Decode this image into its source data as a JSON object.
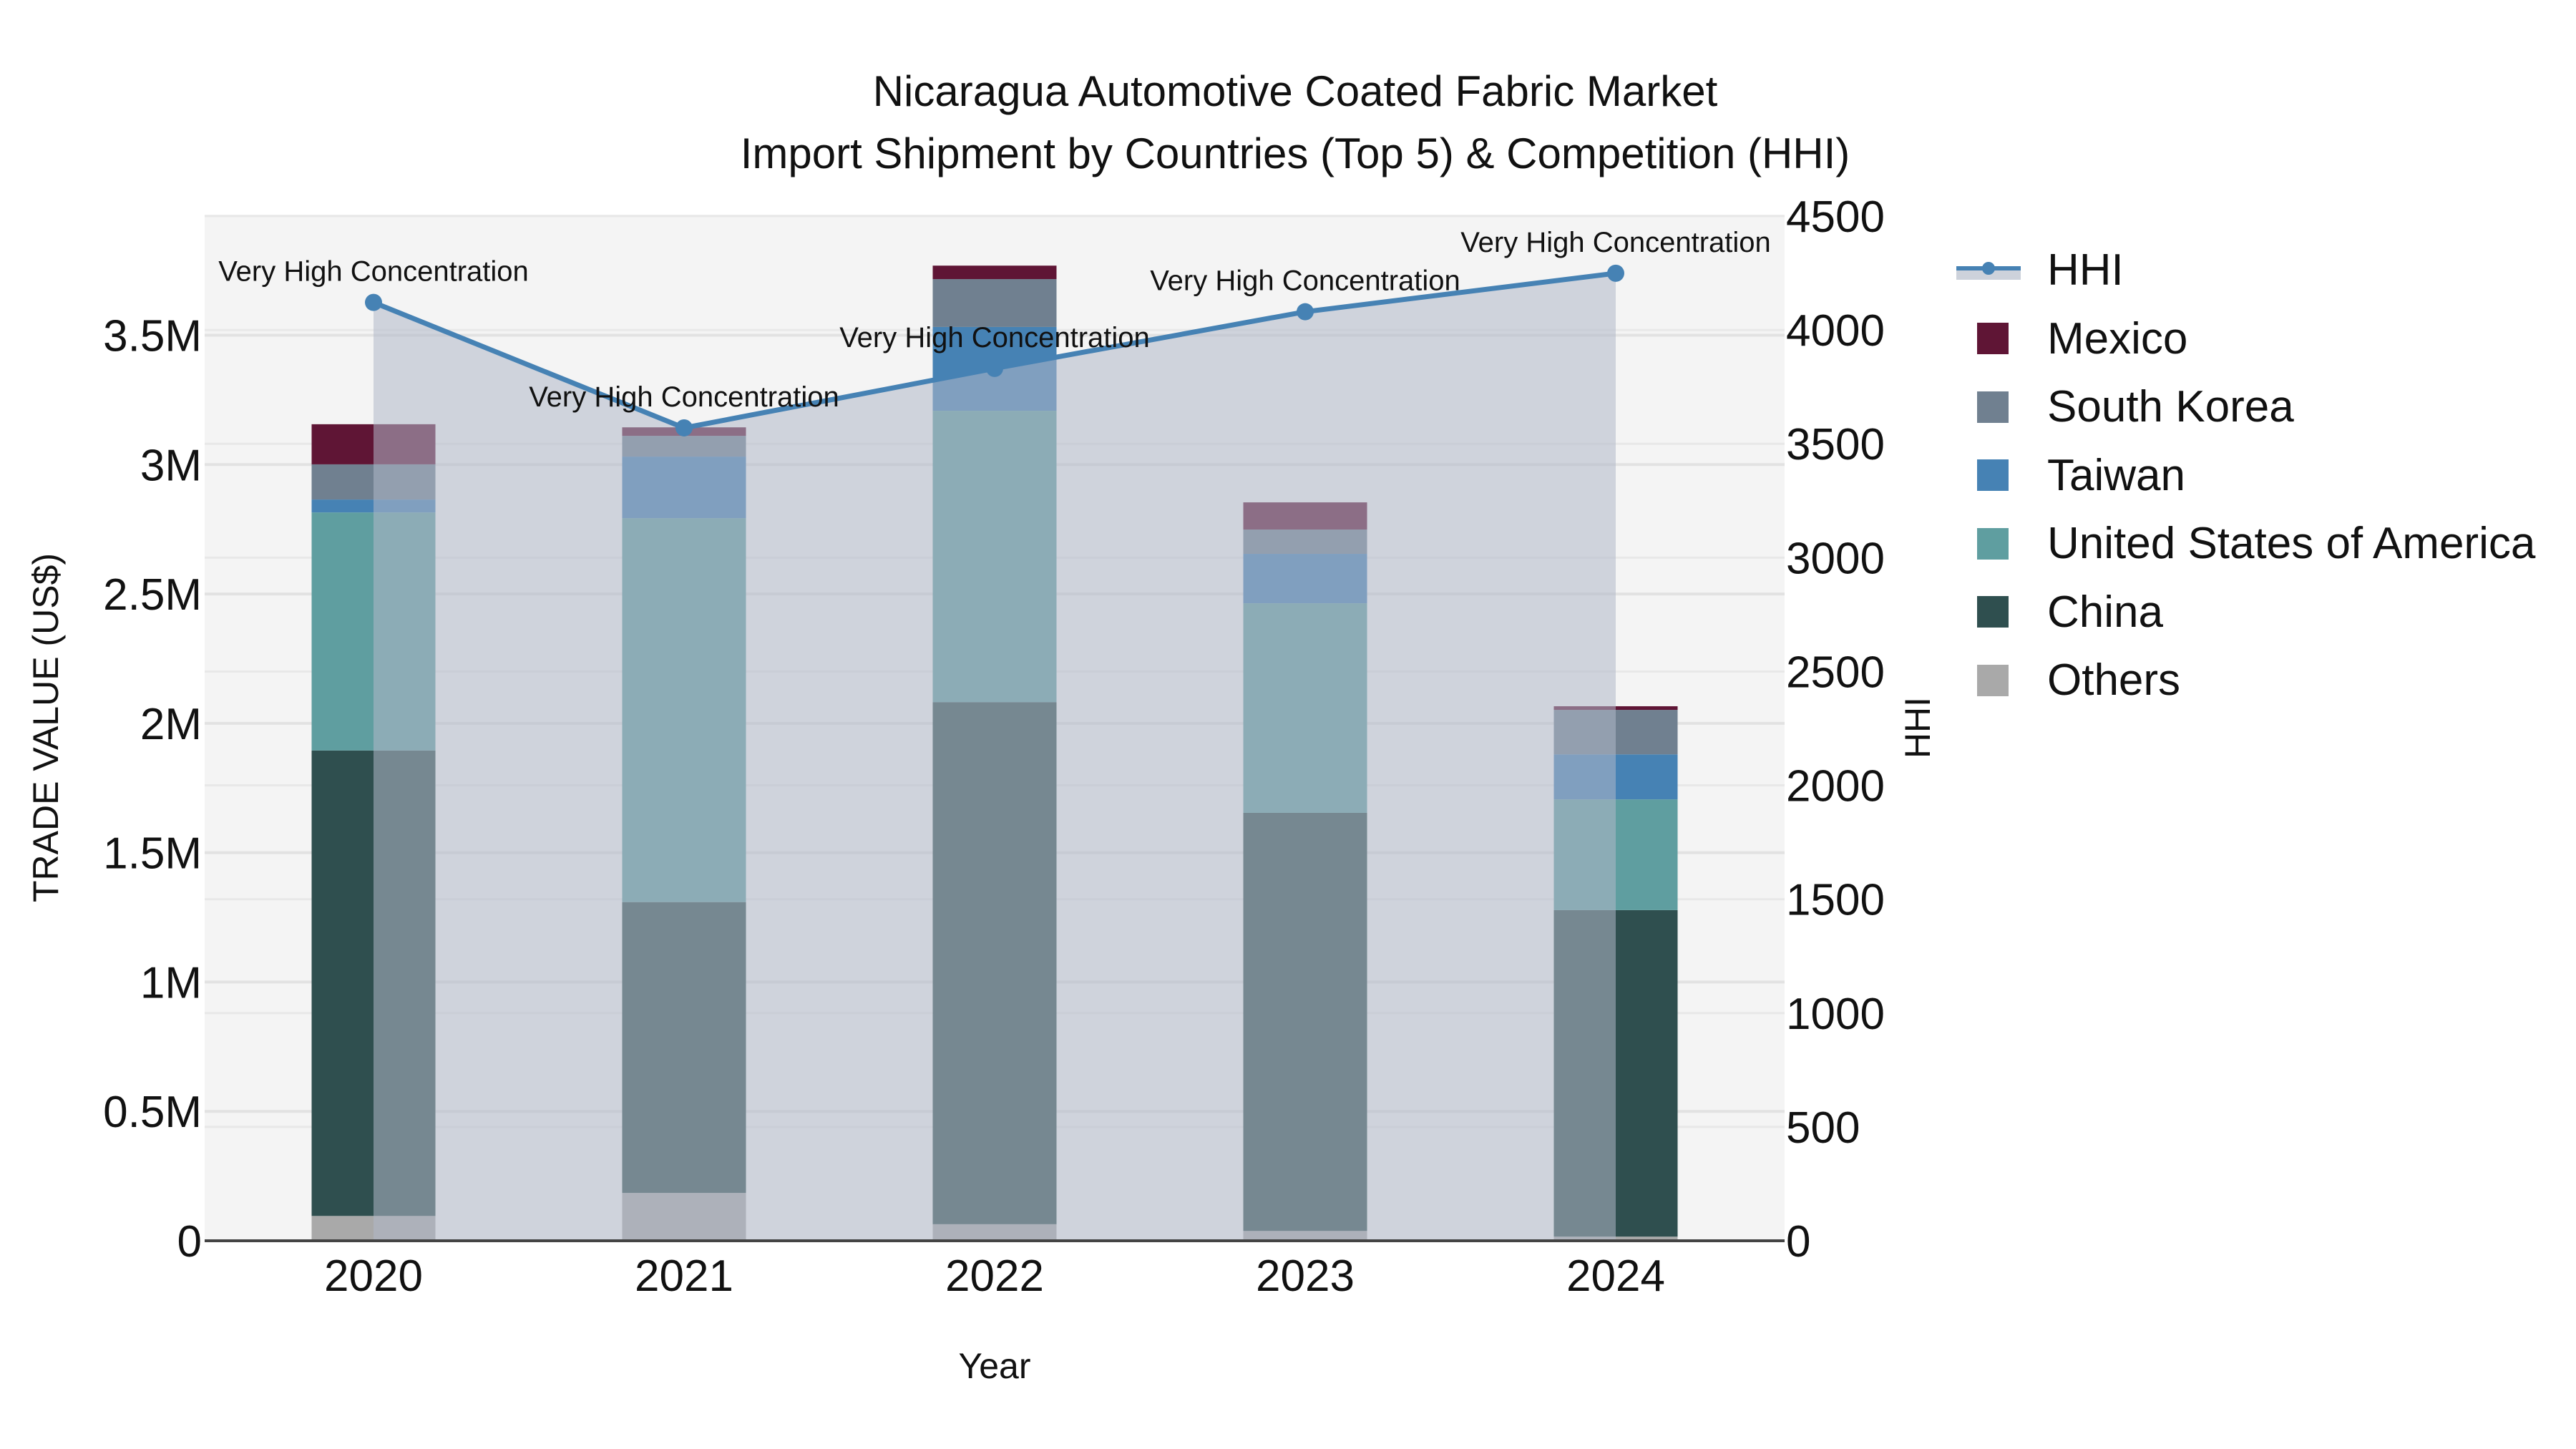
{
  "header": {
    "title_line1": "Nicaragua Automotive Coated Fabric Market",
    "title_line2": "Import Shipment by Countries (Top 5) & Competition (HHI)"
  },
  "axes": {
    "x_label": "Year",
    "y_left_label": "TRADE VALUE (US$)",
    "y_right_label": "HHI"
  },
  "legend": {
    "items": [
      {
        "label": "HHI",
        "type": "line",
        "color": "#4682b4",
        "fill": "#cdd2db"
      },
      {
        "label": "Mexico",
        "type": "box",
        "color": "#5f1535"
      },
      {
        "label": "South Korea",
        "type": "box",
        "color": "#708090"
      },
      {
        "label": "Taiwan",
        "type": "box",
        "color": "#4682b4"
      },
      {
        "label": "United States of America",
        "type": "box",
        "color": "#5f9ea0"
      },
      {
        "label": "China",
        "type": "box",
        "color": "#2f4f4f"
      },
      {
        "label": "Others",
        "type": "box",
        "color": "#a9a9a9"
      }
    ]
  },
  "chart_data": {
    "type": "bar",
    "subtype": "stacked bar + line (dual axis)",
    "title": "Nicaragua Automotive Coated Fabric Market\nImport Shipment by Countries (Top 5) & Competition (HHI)",
    "xlabel": "Year",
    "ylabel": "TRADE VALUE (US$)",
    "y2label": "HHI",
    "categories": [
      "2020",
      "2021",
      "2022",
      "2023",
      "2024"
    ],
    "ylim": [
      0,
      3966000
    ],
    "y2lim": [
      0,
      4500
    ],
    "y_ticks": [
      0,
      500000,
      1000000,
      1500000,
      2000000,
      2500000,
      3000000,
      3500000
    ],
    "y_tick_labels": [
      "0",
      "0.5M",
      "1M",
      "1.5M",
      "2M",
      "2.5M",
      "3M",
      "3.5M"
    ],
    "y2_ticks": [
      0,
      500,
      1000,
      1500,
      2000,
      2500,
      3000,
      3500,
      4000,
      4500
    ],
    "y2_tick_labels": [
      "0",
      "500",
      "1000",
      "1500",
      "2000",
      "2500",
      "3000",
      "3500",
      "4000",
      "4500"
    ],
    "series": [
      {
        "name": "Others",
        "color": "#a9a9a9",
        "values": [
          96000,
          185000,
          64000,
          38000,
          16000
        ]
      },
      {
        "name": "China",
        "color": "#2f4f4f",
        "values": [
          1799000,
          1124000,
          2018000,
          1616000,
          1262000
        ]
      },
      {
        "name": "United States of America",
        "color": "#5f9ea0",
        "values": [
          920000,
          1484000,
          1126000,
          810000,
          428000
        ]
      },
      {
        "name": "Taiwan",
        "color": "#4682b4",
        "values": [
          50000,
          238000,
          324000,
          191000,
          174000
        ]
      },
      {
        "name": "South Korea",
        "color": "#708090",
        "values": [
          136000,
          80000,
          185000,
          94000,
          172000
        ]
      },
      {
        "name": "Mexico",
        "color": "#5f1535",
        "values": [
          155000,
          33000,
          52000,
          105000,
          14000
        ]
      }
    ],
    "line_series": {
      "name": "HHI",
      "axis": "right",
      "color": "#4682b4",
      "values": [
        4121,
        3570,
        3831,
        4080,
        4249
      ],
      "annotations": [
        "Very High Concentration",
        "Very High Concentration",
        "Very High Concentration",
        "Very High Concentration",
        "Very High Concentration"
      ]
    },
    "grid": true,
    "legend_position": "right",
    "plot_background": "#f4f4f4"
  }
}
